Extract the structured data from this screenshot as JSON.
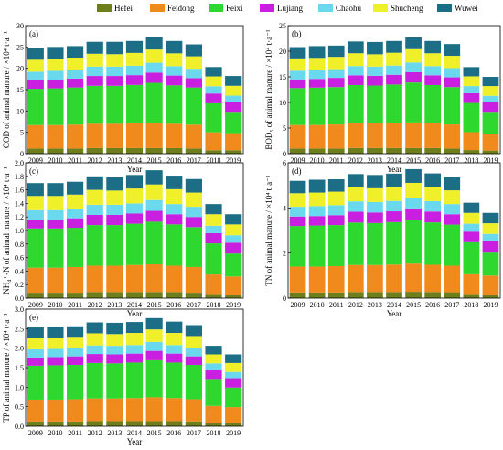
{
  "legend": {
    "placement": "top",
    "entries": [
      {
        "name": "Hefei",
        "color": "#6d7f1d"
      },
      {
        "name": "Feidong",
        "color": "#f08a1c"
      },
      {
        "name": "Feixi",
        "color": "#2fd82f"
      },
      {
        "name": "Lujiang",
        "color": "#c81fe0"
      },
      {
        "name": "Chaohu",
        "color": "#6ad9ee"
      },
      {
        "name": "Shucheng",
        "color": "#f0f02a"
      },
      {
        "name": "Wuwei",
        "color": "#1c6e86"
      }
    ]
  },
  "chart_data": [
    {
      "type": "bar",
      "stacked": true,
      "panel": "(a)",
      "xlabel": "Year",
      "ylabel": "COD of animal manure / ×10⁴ t·a⁻¹",
      "ylim": [
        0,
        30
      ],
      "yticks": [
        0,
        5,
        10,
        15,
        20,
        25,
        30
      ],
      "categories": [
        "2009",
        "2010",
        "2011",
        "2012",
        "2013",
        "2014",
        "2015",
        "2016",
        "2017",
        "2018",
        "2019"
      ],
      "series": [
        {
          "name": "Hefei",
          "values": [
            1.2,
            1.2,
            1.2,
            1.3,
            1.3,
            1.3,
            1.3,
            1.3,
            1.2,
            0.8,
            0.8
          ]
        },
        {
          "name": "Feidong",
          "values": [
            5.5,
            5.5,
            5.6,
            5.7,
            5.7,
            5.8,
            5.9,
            5.7,
            5.6,
            4.2,
            4.0
          ]
        },
        {
          "name": "Feixi",
          "values": [
            8.5,
            8.6,
            8.7,
            8.9,
            8.9,
            9.0,
            9.4,
            9.0,
            8.7,
            6.8,
            4.8
          ]
        },
        {
          "name": "Lujiang",
          "values": [
            2.0,
            2.0,
            2.1,
            2.3,
            2.3,
            2.3,
            2.4,
            2.3,
            2.2,
            2.3,
            2.4
          ]
        },
        {
          "name": "Chaohu",
          "values": [
            2.0,
            2.1,
            2.1,
            2.2,
            2.2,
            2.2,
            2.3,
            2.2,
            2.2,
            1.7,
            1.6
          ]
        },
        {
          "name": "Shucheng",
          "values": [
            2.8,
            2.8,
            2.8,
            3.0,
            2.9,
            3.0,
            3.1,
            3.0,
            2.9,
            2.3,
            2.3
          ]
        },
        {
          "name": "Wuwei",
          "values": [
            2.7,
            2.8,
            2.7,
            2.8,
            2.9,
            2.8,
            3.0,
            2.9,
            2.8,
            2.2,
            2.3
          ]
        }
      ]
    },
    {
      "type": "bar",
      "stacked": true,
      "panel": "(b)",
      "xlabel": "Year",
      "ylabel": "BOD₅ of animal manure / ×10⁴ t·a⁻¹",
      "ylim": [
        0,
        25
      ],
      "yticks": [
        0,
        5,
        10,
        15,
        20,
        25
      ],
      "categories": [
        "2009",
        "2010",
        "2011",
        "2012",
        "2013",
        "2014",
        "2015",
        "2016",
        "2017",
        "2018",
        "2019"
      ],
      "series": [
        {
          "name": "Hefei",
          "values": [
            1.0,
            1.0,
            1.0,
            1.1,
            1.1,
            1.1,
            1.1,
            1.1,
            1.0,
            0.7,
            0.6
          ]
        },
        {
          "name": "Feidong",
          "values": [
            4.6,
            4.6,
            4.7,
            4.8,
            4.8,
            4.9,
            5.0,
            4.8,
            4.7,
            3.5,
            3.3
          ]
        },
        {
          "name": "Feixi",
          "values": [
            7.2,
            7.3,
            7.3,
            7.5,
            7.4,
            7.5,
            7.8,
            7.5,
            7.3,
            5.7,
            4.1
          ]
        },
        {
          "name": "Lujiang",
          "values": [
            1.7,
            1.7,
            1.8,
            1.9,
            1.9,
            1.9,
            2.0,
            1.9,
            1.9,
            1.9,
            2.0
          ]
        },
        {
          "name": "Chaohu",
          "values": [
            1.7,
            1.7,
            1.7,
            1.8,
            1.8,
            1.8,
            1.9,
            1.8,
            1.8,
            1.4,
            1.3
          ]
        },
        {
          "name": "Shucheng",
          "values": [
            2.4,
            2.4,
            2.4,
            2.5,
            2.4,
            2.5,
            2.6,
            2.5,
            2.4,
            1.9,
            1.9
          ]
        },
        {
          "name": "Wuwei",
          "values": [
            2.2,
            2.3,
            2.2,
            2.3,
            2.4,
            2.3,
            2.4,
            2.4,
            2.3,
            1.8,
            1.8
          ]
        }
      ]
    },
    {
      "type": "bar",
      "stacked": true,
      "panel": "(c)",
      "xlabel": "Year",
      "ylabel": "NH₄⁺-N of animal manure / ×10⁴ t·a⁻¹",
      "ylim": [
        0,
        2.0
      ],
      "yticks": [
        0,
        0.2,
        0.4,
        0.6,
        0.8,
        1.0,
        1.2,
        1.4,
        1.6,
        1.8,
        2.0
      ],
      "categories": [
        "2009",
        "2010",
        "2011",
        "2012",
        "2013",
        "2014",
        "2015",
        "2016",
        "2017",
        "2018",
        "2019"
      ],
      "series": [
        {
          "name": "Hefei",
          "values": [
            0.08,
            0.08,
            0.08,
            0.09,
            0.09,
            0.09,
            0.09,
            0.09,
            0.08,
            0.06,
            0.05
          ]
        },
        {
          "name": "Feidong",
          "values": [
            0.37,
            0.37,
            0.38,
            0.39,
            0.39,
            0.4,
            0.41,
            0.39,
            0.38,
            0.29,
            0.27
          ]
        },
        {
          "name": "Feixi",
          "values": [
            0.58,
            0.58,
            0.58,
            0.6,
            0.6,
            0.61,
            0.63,
            0.61,
            0.59,
            0.46,
            0.34
          ]
        },
        {
          "name": "Lujiang",
          "values": [
            0.13,
            0.13,
            0.14,
            0.15,
            0.15,
            0.15,
            0.16,
            0.15,
            0.15,
            0.15,
            0.16
          ]
        },
        {
          "name": "Chaohu",
          "values": [
            0.14,
            0.14,
            0.14,
            0.15,
            0.15,
            0.15,
            0.16,
            0.15,
            0.15,
            0.11,
            0.11
          ]
        },
        {
          "name": "Shucheng",
          "values": [
            0.21,
            0.21,
            0.21,
            0.22,
            0.21,
            0.22,
            0.23,
            0.22,
            0.21,
            0.17,
            0.16
          ]
        },
        {
          "name": "Wuwei",
          "values": [
            0.19,
            0.19,
            0.19,
            0.2,
            0.2,
            0.2,
            0.21,
            0.2,
            0.2,
            0.15,
            0.15
          ]
        }
      ]
    },
    {
      "type": "bar",
      "stacked": true,
      "panel": "(d)",
      "xlabel": "Year",
      "ylabel": "TN of animal manure / ×10⁴ t·a⁻¹",
      "ylim": [
        0,
        6
      ],
      "yticks": [
        0,
        2,
        4,
        6
      ],
      "categories": [
        "2009",
        "2010",
        "2011",
        "2012",
        "2013",
        "2014",
        "2015",
        "2016",
        "2017",
        "2018",
        "2019"
      ],
      "series": [
        {
          "name": "Hefei",
          "values": [
            0.25,
            0.25,
            0.25,
            0.27,
            0.27,
            0.27,
            0.28,
            0.27,
            0.26,
            0.18,
            0.16
          ]
        },
        {
          "name": "Feidong",
          "values": [
            1.15,
            1.15,
            1.17,
            1.2,
            1.2,
            1.22,
            1.25,
            1.21,
            1.18,
            0.88,
            0.84
          ]
        },
        {
          "name": "Feixi",
          "values": [
            1.8,
            1.82,
            1.82,
            1.88,
            1.86,
            1.88,
            1.95,
            1.88,
            1.82,
            1.42,
            1.02
          ]
        },
        {
          "name": "Lujiang",
          "values": [
            0.42,
            0.42,
            0.44,
            0.48,
            0.47,
            0.48,
            0.5,
            0.48,
            0.46,
            0.47,
            0.5
          ]
        },
        {
          "name": "Chaohu",
          "values": [
            0.43,
            0.44,
            0.44,
            0.46,
            0.46,
            0.46,
            0.48,
            0.46,
            0.45,
            0.35,
            0.33
          ]
        },
        {
          "name": "Shucheng",
          "values": [
            0.6,
            0.6,
            0.6,
            0.63,
            0.61,
            0.63,
            0.65,
            0.63,
            0.61,
            0.48,
            0.47
          ]
        },
        {
          "name": "Wuwei",
          "values": [
            0.55,
            0.57,
            0.55,
            0.58,
            0.59,
            0.58,
            0.61,
            0.6,
            0.58,
            0.45,
            0.46
          ]
        }
      ]
    },
    {
      "type": "bar",
      "stacked": true,
      "panel": "(e)",
      "xlabel": "Year",
      "ylabel": "TP of animal manure / ×10⁴ t·a⁻¹",
      "ylim": [
        0,
        3.0
      ],
      "yticks": [
        0,
        0.5,
        1.0,
        1.5,
        2.0,
        2.5,
        3.0
      ],
      "categories": [
        "2009",
        "2010",
        "2011",
        "2012",
        "2013",
        "2014",
        "2015",
        "2016",
        "2017",
        "2018",
        "2019"
      ],
      "series": [
        {
          "name": "Hefei",
          "values": [
            0.12,
            0.12,
            0.12,
            0.13,
            0.13,
            0.13,
            0.13,
            0.13,
            0.12,
            0.09,
            0.08
          ]
        },
        {
          "name": "Feidong",
          "values": [
            0.56,
            0.56,
            0.57,
            0.58,
            0.58,
            0.59,
            0.61,
            0.59,
            0.57,
            0.43,
            0.41
          ]
        },
        {
          "name": "Feixi",
          "values": [
            0.87,
            0.88,
            0.88,
            0.91,
            0.9,
            0.91,
            0.95,
            0.91,
            0.88,
            0.69,
            0.5
          ]
        },
        {
          "name": "Lujiang",
          "values": [
            0.21,
            0.21,
            0.22,
            0.23,
            0.23,
            0.23,
            0.24,
            0.23,
            0.22,
            0.23,
            0.24
          ]
        },
        {
          "name": "Chaohu",
          "values": [
            0.21,
            0.21,
            0.21,
            0.22,
            0.22,
            0.22,
            0.23,
            0.22,
            0.22,
            0.17,
            0.16
          ]
        },
        {
          "name": "Shucheng",
          "values": [
            0.29,
            0.29,
            0.29,
            0.31,
            0.3,
            0.31,
            0.32,
            0.31,
            0.3,
            0.23,
            0.23
          ]
        },
        {
          "name": "Wuwei",
          "values": [
            0.27,
            0.28,
            0.27,
            0.28,
            0.29,
            0.28,
            0.29,
            0.29,
            0.28,
            0.22,
            0.22
          ]
        }
      ]
    }
  ]
}
